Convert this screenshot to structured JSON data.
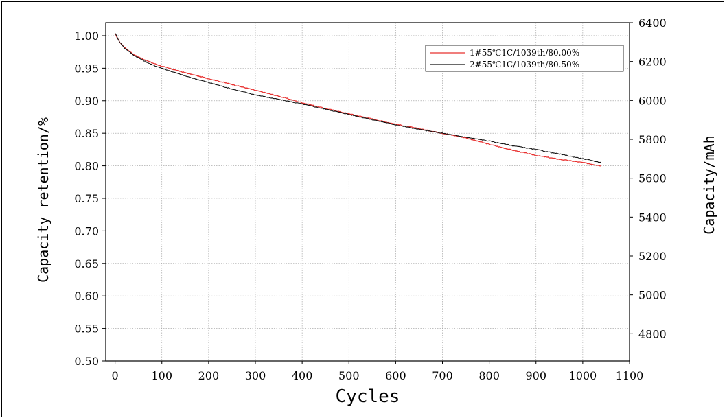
{
  "chart_data": {
    "type": "line",
    "xlabel": "Cycles",
    "ylabel": "Capacity retention/%",
    "y2label": "Capacity/mAh",
    "xlim": [
      -20,
      1100
    ],
    "ylim": [
      0.5,
      1.02
    ],
    "y2lim": [
      4660,
      6400
    ],
    "xticks": [
      "0",
      "100",
      "200",
      "300",
      "400",
      "500",
      "600",
      "700",
      "800",
      "900",
      "1000",
      "1100"
    ],
    "yticks": [
      "0.50",
      "0.55",
      "0.60",
      "0.65",
      "0.70",
      "0.75",
      "0.80",
      "0.85",
      "0.90",
      "0.95",
      "1.00"
    ],
    "y2ticks": [
      "4800",
      "5000",
      "5200",
      "5400",
      "5600",
      "5800",
      "6000",
      "6200",
      "6400"
    ],
    "grid": true,
    "legend_position": "top-right",
    "series": [
      {
        "name": "1#55℃1C/1039th/80.00%",
        "color": "#e8302f",
        "x": [
          0,
          10,
          20,
          40,
          60,
          80,
          100,
          150,
          200,
          250,
          300,
          350,
          400,
          450,
          500,
          550,
          600,
          650,
          700,
          750,
          800,
          850,
          900,
          950,
          1000,
          1039
        ],
        "y": [
          1.003,
          0.99,
          0.982,
          0.971,
          0.964,
          0.958,
          0.953,
          0.943,
          0.934,
          0.925,
          0.916,
          0.907,
          0.897,
          0.888,
          0.88,
          0.872,
          0.864,
          0.857,
          0.85,
          0.843,
          0.833,
          0.824,
          0.816,
          0.81,
          0.805,
          0.8
        ]
      },
      {
        "name": "2#55℃1C/1039th/80.50%",
        "color": "#111111",
        "x": [
          0,
          10,
          20,
          40,
          60,
          80,
          100,
          150,
          200,
          250,
          300,
          350,
          400,
          450,
          500,
          550,
          600,
          650,
          700,
          750,
          800,
          850,
          900,
          950,
          1000,
          1039
        ],
        "y": [
          1.004,
          0.99,
          0.981,
          0.97,
          0.962,
          0.955,
          0.95,
          0.938,
          0.928,
          0.918,
          0.909,
          0.902,
          0.895,
          0.887,
          0.879,
          0.871,
          0.863,
          0.856,
          0.85,
          0.844,
          0.838,
          0.831,
          0.825,
          0.818,
          0.811,
          0.805
        ]
      }
    ]
  }
}
